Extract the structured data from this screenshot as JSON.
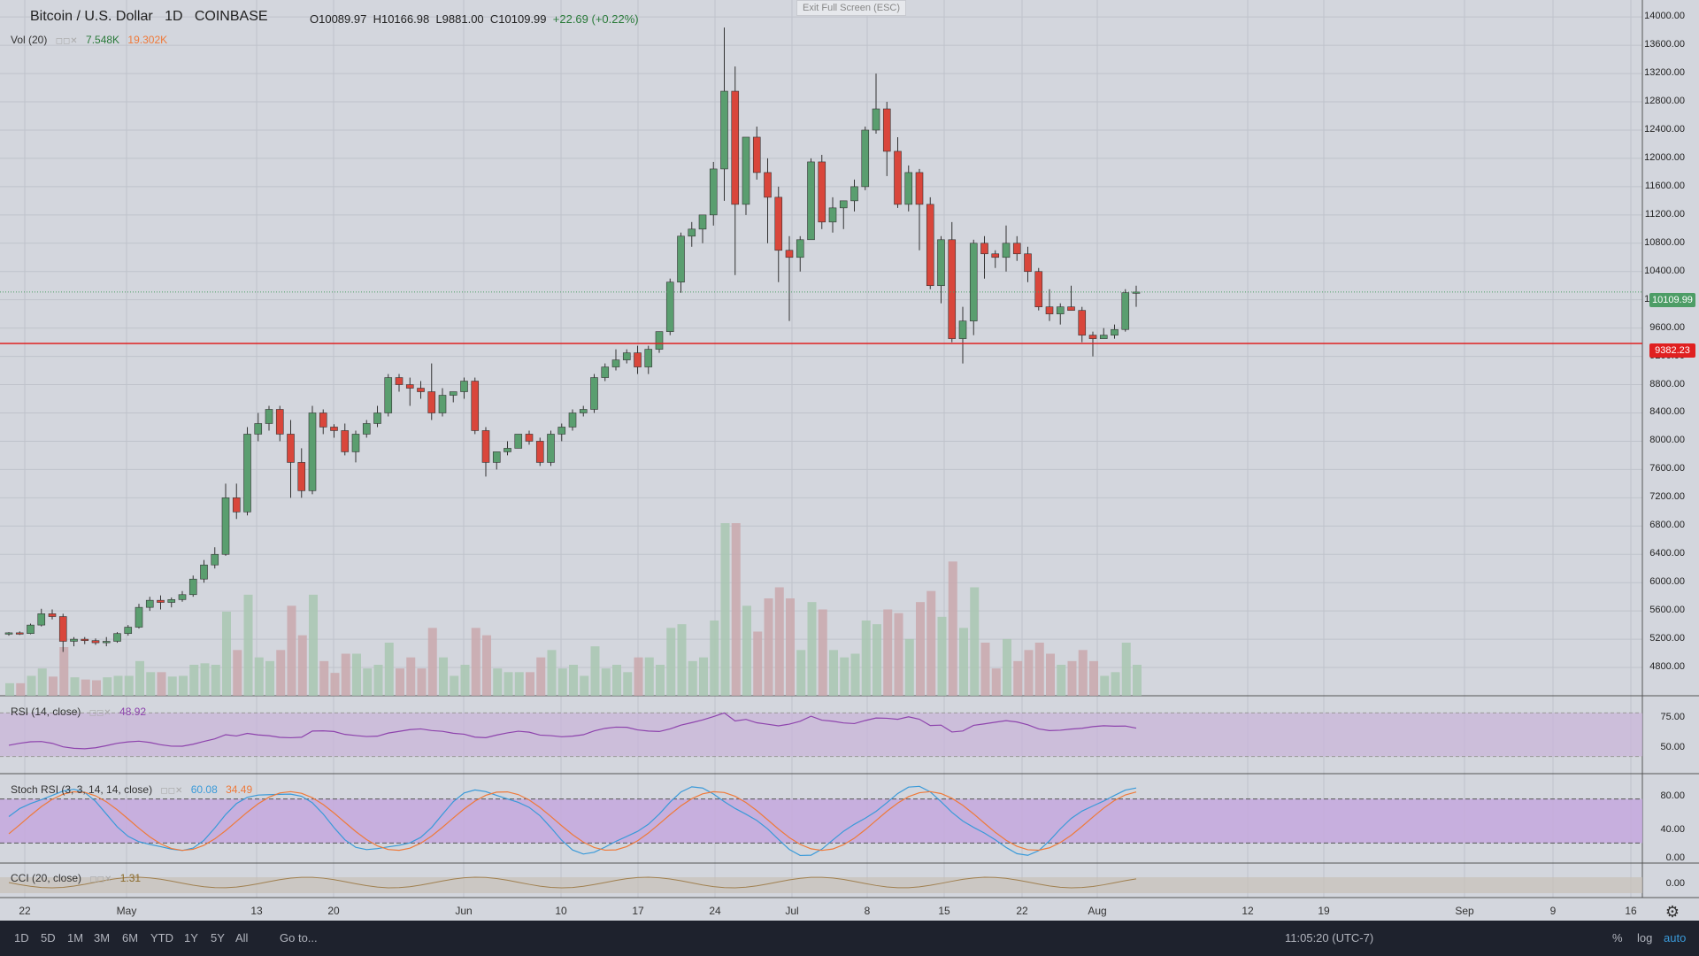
{
  "header": {
    "symbol": "Bitcoin / U.S. Dollar",
    "interval": "1D",
    "exchange": "COINBASE",
    "open": "O10089.97",
    "high": "H10166.98",
    "low": "L9881.00",
    "close": "C10109.99",
    "change": "+22.69 (+0.22%)"
  },
  "exit_fullscreen": "Exit Full Screen (ESC)",
  "volume": {
    "label": "Vol (20)",
    "value1": "7.548K",
    "value2": "19.302K"
  },
  "rsi": {
    "label": "RSI (14, close)",
    "value": "48.92"
  },
  "stoch_rsi": {
    "label": "Stoch RSI (3, 3, 14, 14, close)",
    "value1": "60.08",
    "value2": "34.49"
  },
  "cci": {
    "label": "CCI (20, close)",
    "value": "1.31"
  },
  "price_axis": [
    "14000.00",
    "13600.00",
    "13200.00",
    "12800.00",
    "12400.00",
    "12000.00",
    "11600.00",
    "11200.00",
    "10800.00",
    "10400.00",
    "10000.00",
    "9600.00",
    "9200.00",
    "8800.00",
    "8400.00",
    "8000.00",
    "7600.00",
    "7200.00",
    "6800.00",
    "6400.00",
    "6000.00",
    "5600.00",
    "5200.00",
    "4800.00"
  ],
  "last_price_tag": "10109.99",
  "hline_tag": "9382.23",
  "rsi_axis": [
    "75.00",
    "50.00"
  ],
  "stoch_axis": [
    "80.00",
    "40.00",
    "0.00"
  ],
  "cci_axis": [
    "0.00"
  ],
  "time_axis": [
    "22",
    "May",
    "13",
    "20",
    "Jun",
    "10",
    "17",
    "24",
    "Jul",
    "8",
    "15",
    "22",
    "Aug",
    "12",
    "19",
    "Sep",
    "9",
    "16"
  ],
  "bottom_bar": {
    "ranges": [
      "1D",
      "5D",
      "1M",
      "3M",
      "6M",
      "YTD",
      "1Y",
      "5Y",
      "All"
    ],
    "goto": "Go to...",
    "clock": "11:05:20 (UTC-7)",
    "percent": "%",
    "log": "log",
    "auto": "auto"
  },
  "colors": {
    "up": "#5a9e6f",
    "down": "#d9463b",
    "hline": "#e02020",
    "rsi": "#8e44ad",
    "stoch_k": "#3a9ad9",
    "stoch_d": "#ef7a3a"
  },
  "chart_data": {
    "type": "candlestick",
    "series": [
      {
        "name": "Bitcoin / U.S. Dollar",
        "values": [
          [
            5280,
            5300,
            5250,
            5290
          ],
          [
            5290,
            5310,
            5260,
            5280
          ],
          [
            5280,
            5420,
            5270,
            5400
          ],
          [
            5400,
            5630,
            5380,
            5560
          ],
          [
            5560,
            5620,
            5480,
            5520
          ],
          [
            5520,
            5560,
            5020,
            5170
          ],
          [
            5170,
            5230,
            5100,
            5200
          ],
          [
            5200,
            5230,
            5130,
            5180
          ],
          [
            5180,
            5210,
            5120,
            5150
          ],
          [
            5150,
            5230,
            5100,
            5170
          ],
          [
            5170,
            5300,
            5150,
            5280
          ],
          [
            5280,
            5400,
            5250,
            5370
          ],
          [
            5370,
            5700,
            5350,
            5650
          ],
          [
            5650,
            5800,
            5600,
            5750
          ],
          [
            5750,
            5820,
            5620,
            5720
          ],
          [
            5720,
            5790,
            5650,
            5760
          ],
          [
            5760,
            5880,
            5730,
            5830
          ],
          [
            5830,
            6100,
            5800,
            6050
          ],
          [
            6050,
            6320,
            6000,
            6250
          ],
          [
            6250,
            6500,
            6200,
            6400
          ],
          [
            6400,
            7400,
            6380,
            7200
          ],
          [
            7200,
            7400,
            6900,
            7000
          ],
          [
            7000,
            8200,
            6950,
            8100
          ],
          [
            8100,
            8400,
            8000,
            8250
          ],
          [
            8250,
            8500,
            8150,
            8450
          ],
          [
            8450,
            8500,
            8000,
            8100
          ],
          [
            8100,
            8300,
            7200,
            7700
          ],
          [
            7700,
            7900,
            7200,
            7300
          ],
          [
            7300,
            8500,
            7250,
            8400
          ],
          [
            8400,
            8450,
            8100,
            8200
          ],
          [
            8200,
            8240,
            8050,
            8150
          ],
          [
            8150,
            8250,
            7800,
            7850
          ],
          [
            7850,
            8150,
            7700,
            8100
          ],
          [
            8100,
            8300,
            8050,
            8250
          ],
          [
            8250,
            8500,
            8200,
            8400
          ],
          [
            8400,
            8950,
            8350,
            8900
          ],
          [
            8900,
            8950,
            8700,
            8800
          ],
          [
            8800,
            8900,
            8500,
            8750
          ],
          [
            8750,
            8850,
            8600,
            8700
          ],
          [
            8700,
            9100,
            8300,
            8400
          ],
          [
            8400,
            8750,
            8350,
            8650
          ],
          [
            8650,
            8700,
            8550,
            8700
          ],
          [
            8700,
            8900,
            8600,
            8850
          ],
          [
            8850,
            8900,
            8100,
            8150
          ],
          [
            8150,
            8200,
            7500,
            7700
          ],
          [
            7700,
            7850,
            7600,
            7850
          ],
          [
            7850,
            8000,
            7800,
            7900
          ],
          [
            7900,
            8100,
            7900,
            8100
          ],
          [
            8100,
            8150,
            7950,
            8000
          ],
          [
            8000,
            8050,
            7650,
            7700
          ],
          [
            7700,
            8150,
            7650,
            8100
          ],
          [
            8100,
            8250,
            8000,
            8200
          ],
          [
            8200,
            8450,
            8150,
            8400
          ],
          [
            8400,
            8500,
            8350,
            8450
          ],
          [
            8450,
            8950,
            8400,
            8900
          ],
          [
            8900,
            9100,
            8850,
            9050
          ],
          [
            9050,
            9300,
            9000,
            9150
          ],
          [
            9150,
            9300,
            9100,
            9250
          ],
          [
            9250,
            9350,
            8950,
            9050
          ],
          [
            9050,
            9350,
            8950,
            9300
          ],
          [
            9300,
            9550,
            9250,
            9550
          ],
          [
            9550,
            10300,
            9500,
            10250
          ],
          [
            10250,
            10950,
            10100,
            10900
          ],
          [
            10900,
            11100,
            10750,
            11000
          ],
          [
            11000,
            11200,
            10800,
            11200
          ],
          [
            11200,
            11950,
            11050,
            11850
          ],
          [
            11850,
            13850,
            11400,
            12950
          ],
          [
            12950,
            13300,
            10350,
            11350
          ],
          [
            11350,
            12300,
            11200,
            12300
          ],
          [
            12300,
            12450,
            11700,
            11800
          ],
          [
            11800,
            12000,
            10800,
            11450
          ],
          [
            11450,
            11600,
            10250,
            10700
          ],
          [
            10700,
            10900,
            9700,
            10600
          ],
          [
            10600,
            10900,
            10400,
            10850
          ],
          [
            10850,
            12000,
            10850,
            11950
          ],
          [
            11950,
            12050,
            11000,
            11100
          ],
          [
            11100,
            11450,
            10950,
            11300
          ],
          [
            11300,
            11400,
            11000,
            11400
          ],
          [
            11400,
            11700,
            11250,
            11600
          ],
          [
            11600,
            12450,
            11550,
            12400
          ],
          [
            12400,
            13200,
            12350,
            12700
          ],
          [
            12700,
            12800,
            11750,
            12100
          ],
          [
            12100,
            12300,
            11300,
            11350
          ],
          [
            11350,
            11900,
            11250,
            11800
          ],
          [
            11800,
            11850,
            10700,
            11350
          ],
          [
            11350,
            11450,
            10150,
            10200
          ],
          [
            10200,
            10900,
            9950,
            10850
          ],
          [
            10850,
            11100,
            9400,
            9450
          ],
          [
            9450,
            9900,
            9100,
            9700
          ],
          [
            9700,
            10850,
            9500,
            10800
          ],
          [
            10800,
            10900,
            10300,
            10650
          ],
          [
            10650,
            10700,
            10450,
            10600
          ],
          [
            10600,
            11050,
            10400,
            10800
          ],
          [
            10800,
            10900,
            10550,
            10650
          ],
          [
            10650,
            10750,
            10250,
            10400
          ],
          [
            10400,
            10450,
            9850,
            9900
          ],
          [
            9900,
            10150,
            9700,
            9800
          ],
          [
            9800,
            9950,
            9650,
            9900
          ],
          [
            9900,
            10200,
            9850,
            9850
          ],
          [
            9850,
            9900,
            9400,
            9500
          ],
          [
            9500,
            9550,
            9200,
            9450
          ],
          [
            9450,
            9600,
            9450,
            9500
          ],
          [
            9500,
            9650,
            9450,
            9580
          ],
          [
            9580,
            10150,
            9550,
            10100
          ],
          [
            10100,
            10200,
            9900,
            10110
          ]
        ]
      }
    ],
    "volume_scale_note": "relative"
  }
}
